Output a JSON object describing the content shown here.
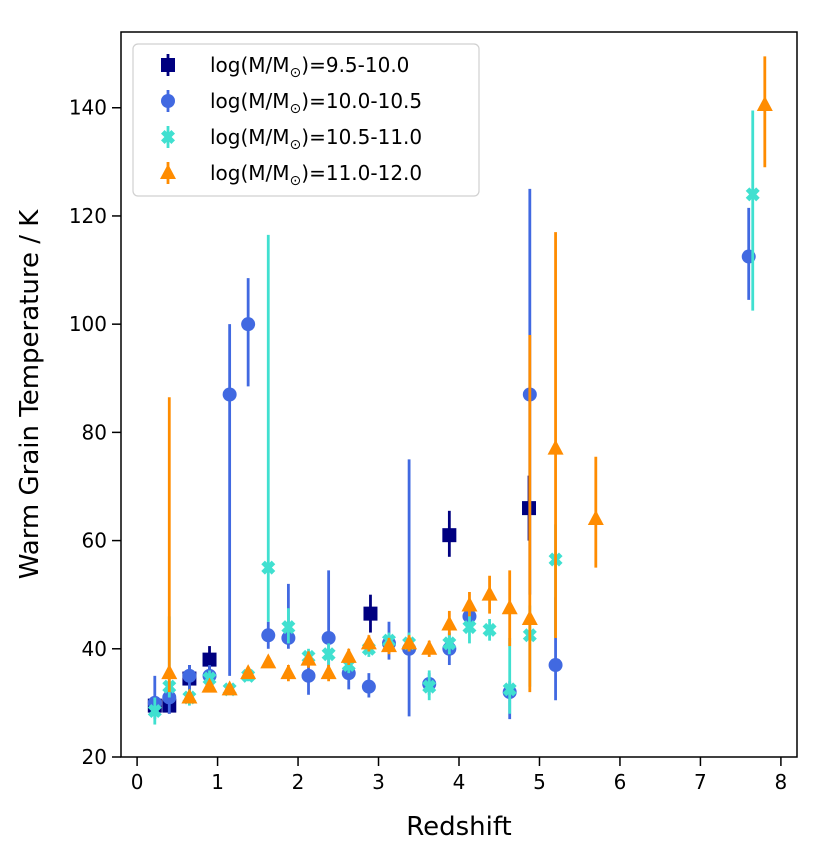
{
  "chart_data": {
    "type": "scatter",
    "title": "",
    "xlabel": "Redshift",
    "ylabel": "Warm Grain Temperature / K",
    "xlim": [
      -0.2,
      8.2
    ],
    "ylim": [
      20,
      154
    ],
    "xticks": [
      "0",
      "1",
      "2",
      "3",
      "4",
      "5",
      "6",
      "7",
      "8"
    ],
    "yticks": [
      "20",
      "40",
      "60",
      "80",
      "100",
      "120",
      "140"
    ],
    "legend": {
      "placement": "top-left",
      "entries": [
        {
          "prefix": "log(M/M",
          "sub": "⊙",
          "suffix": ")=9.5-10.0"
        },
        {
          "prefix": "log(M/M",
          "sub": "⊙",
          "suffix": ")=10.0-10.5"
        },
        {
          "prefix": "log(M/M",
          "sub": "⊙",
          "suffix": ")=10.5-11.0"
        },
        {
          "prefix": "log(M/M",
          "sub": "⊙",
          "suffix": ")=11.0-12.0"
        }
      ]
    },
    "series": [
      {
        "name": "log(M/M⊙)=9.5-10.0",
        "marker": "square",
        "color": "#000080",
        "points": [
          {
            "x": 0.22,
            "y": 29.5,
            "lo": 28.0,
            "hi": 31.0
          },
          {
            "x": 0.4,
            "y": 29.5,
            "lo": 28.0,
            "hi": 31.0
          },
          {
            "x": 0.65,
            "y": 34.5,
            "lo": 32.0,
            "hi": 37.0
          },
          {
            "x": 0.9,
            "y": 38.0,
            "lo": 35.5,
            "hi": 40.5
          },
          {
            "x": 2.9,
            "y": 46.5,
            "lo": 43.0,
            "hi": 50.0
          },
          {
            "x": 3.88,
            "y": 61.0,
            "lo": 57.0,
            "hi": 65.5
          },
          {
            "x": 4.87,
            "y": 66.0,
            "lo": 60.0,
            "hi": 72.0
          }
        ]
      },
      {
        "name": "log(M/M⊙)=10.0-10.5",
        "marker": "circle",
        "color": "#4169e1",
        "points": [
          {
            "x": 0.22,
            "y": 30.0,
            "lo": 27.0,
            "hi": 35.0
          },
          {
            "x": 0.4,
            "y": 31.0,
            "lo": 28.0,
            "hi": 34.0
          },
          {
            "x": 0.65,
            "y": 35.0,
            "lo": 32.5,
            "hi": 37.0
          },
          {
            "x": 0.9,
            "y": 35.0,
            "lo": 33.0,
            "hi": 37.0
          },
          {
            "x": 1.15,
            "y": 87.0,
            "lo": 35.0,
            "hi": 100.0
          },
          {
            "x": 1.38,
            "y": 100.0,
            "lo": 88.5,
            "hi": 108.5
          },
          {
            "x": 1.63,
            "y": 42.5,
            "lo": 40.0,
            "hi": 45.0
          },
          {
            "x": 1.88,
            "y": 42.0,
            "lo": 40.0,
            "hi": 52.0
          },
          {
            "x": 2.13,
            "y": 35.0,
            "lo": 31.5,
            "hi": 38.0
          },
          {
            "x": 2.38,
            "y": 42.0,
            "lo": 36.0,
            "hi": 54.5
          },
          {
            "x": 2.63,
            "y": 35.5,
            "lo": 32.5,
            "hi": 38.0
          },
          {
            "x": 2.88,
            "y": 33.0,
            "lo": 31.0,
            "hi": 35.5
          },
          {
            "x": 3.13,
            "y": 41.0,
            "lo": 38.0,
            "hi": 45.0
          },
          {
            "x": 3.38,
            "y": 40.0,
            "lo": 27.5,
            "hi": 75.0
          },
          {
            "x": 3.63,
            "y": 33.5,
            "lo": 31.5,
            "hi": 35.5
          },
          {
            "x": 3.88,
            "y": 40.0,
            "lo": 37.0,
            "hi": 43.0
          },
          {
            "x": 4.13,
            "y": 46.0,
            "lo": 43.5,
            "hi": 49.0
          },
          {
            "x": 4.63,
            "y": 32.0,
            "lo": 27.0,
            "hi": 34.0
          },
          {
            "x": 4.88,
            "y": 87.0,
            "lo": 50.0,
            "hi": 125.0
          },
          {
            "x": 5.2,
            "y": 37.0,
            "lo": 30.5,
            "hi": 49.5
          },
          {
            "x": 7.6,
            "y": 112.5,
            "lo": 104.5,
            "hi": 121.5
          }
        ]
      },
      {
        "name": "log(M/M⊙)=10.5-11.0",
        "marker": "x",
        "color": "#40e0d0",
        "points": [
          {
            "x": 0.22,
            "y": 28.5,
            "lo": 26.0,
            "hi": 31.0
          },
          {
            "x": 0.4,
            "y": 33.0,
            "lo": 31.0,
            "hi": 46.0
          },
          {
            "x": 0.65,
            "y": 31.0,
            "lo": 29.5,
            "hi": 32.5
          },
          {
            "x": 0.9,
            "y": 34.5,
            "lo": 33.0,
            "hi": 36.0
          },
          {
            "x": 1.15,
            "y": 32.5,
            "lo": 31.5,
            "hi": 33.5
          },
          {
            "x": 1.38,
            "y": 35.0,
            "lo": 34.0,
            "hi": 36.0
          },
          {
            "x": 1.63,
            "y": 55.0,
            "lo": 45.0,
            "hi": 116.5
          },
          {
            "x": 1.88,
            "y": 44.0,
            "lo": 41.0,
            "hi": 47.5
          },
          {
            "x": 2.13,
            "y": 38.5,
            "lo": 37.0,
            "hi": 40.0
          },
          {
            "x": 2.38,
            "y": 39.0,
            "lo": 37.0,
            "hi": 41.0
          },
          {
            "x": 2.63,
            "y": 37.0,
            "lo": 35.5,
            "hi": 38.5
          },
          {
            "x": 2.88,
            "y": 40.0,
            "lo": 38.5,
            "hi": 41.5
          },
          {
            "x": 3.13,
            "y": 41.5,
            "lo": 40.0,
            "hi": 43.0
          },
          {
            "x": 3.38,
            "y": 41.0,
            "lo": 39.5,
            "hi": 43.0
          },
          {
            "x": 3.63,
            "y": 33.0,
            "lo": 30.5,
            "hi": 36.0
          },
          {
            "x": 3.88,
            "y": 41.0,
            "lo": 39.0,
            "hi": 43.0
          },
          {
            "x": 4.13,
            "y": 44.0,
            "lo": 41.0,
            "hi": 47.0
          },
          {
            "x": 4.38,
            "y": 43.5,
            "lo": 41.5,
            "hi": 45.5
          },
          {
            "x": 4.63,
            "y": 32.5,
            "lo": 28.0,
            "hi": 42.0
          },
          {
            "x": 4.88,
            "y": 42.5,
            "lo": 33.0,
            "hi": 48.0
          },
          {
            "x": 5.2,
            "y": 56.5,
            "lo": 42.0,
            "hi": 63.0
          },
          {
            "x": 7.65,
            "y": 124.0,
            "lo": 102.5,
            "hi": 139.5
          }
        ]
      },
      {
        "name": "log(M/M⊙)=11.0-12.0",
        "marker": "triangle",
        "color": "#ff8c00",
        "points": [
          {
            "x": 0.4,
            "y": 35.5,
            "lo": 32.0,
            "hi": 86.5
          },
          {
            "x": 0.65,
            "y": 31.0,
            "lo": 30.0,
            "hi": 32.0
          },
          {
            "x": 0.9,
            "y": 33.0,
            "lo": 32.0,
            "hi": 34.0
          },
          {
            "x": 1.15,
            "y": 32.5,
            "lo": 31.5,
            "hi": 33.5
          },
          {
            "x": 1.38,
            "y": 35.5,
            "lo": 34.5,
            "hi": 36.5
          },
          {
            "x": 1.63,
            "y": 37.5,
            "lo": 36.5,
            "hi": 38.5
          },
          {
            "x": 1.88,
            "y": 35.5,
            "lo": 34.0,
            "hi": 37.0
          },
          {
            "x": 2.13,
            "y": 38.0,
            "lo": 36.5,
            "hi": 39.5
          },
          {
            "x": 2.38,
            "y": 35.5,
            "lo": 34.0,
            "hi": 37.0
          },
          {
            "x": 2.63,
            "y": 38.5,
            "lo": 37.0,
            "hi": 40.0
          },
          {
            "x": 2.88,
            "y": 41.0,
            "lo": 39.5,
            "hi": 42.5
          },
          {
            "x": 3.13,
            "y": 40.5,
            "lo": 39.0,
            "hi": 42.0
          },
          {
            "x": 3.38,
            "y": 41.0,
            "lo": 39.5,
            "hi": 42.5
          },
          {
            "x": 3.63,
            "y": 40.0,
            "lo": 38.5,
            "hi": 41.5
          },
          {
            "x": 3.88,
            "y": 44.5,
            "lo": 42.5,
            "hi": 47.0
          },
          {
            "x": 4.13,
            "y": 48.0,
            "lo": 46.0,
            "hi": 50.5
          },
          {
            "x": 4.38,
            "y": 50.0,
            "lo": 46.5,
            "hi": 53.5
          },
          {
            "x": 4.63,
            "y": 47.5,
            "lo": 40.5,
            "hi": 54.5
          },
          {
            "x": 4.88,
            "y": 45.5,
            "lo": 32.0,
            "hi": 98.0
          },
          {
            "x": 5.2,
            "y": 77.0,
            "lo": 42.0,
            "hi": 117.0
          },
          {
            "x": 5.7,
            "y": 64.0,
            "lo": 55.0,
            "hi": 75.5
          },
          {
            "x": 7.8,
            "y": 140.5,
            "lo": 129.0,
            "hi": 149.5
          }
        ]
      }
    ]
  }
}
